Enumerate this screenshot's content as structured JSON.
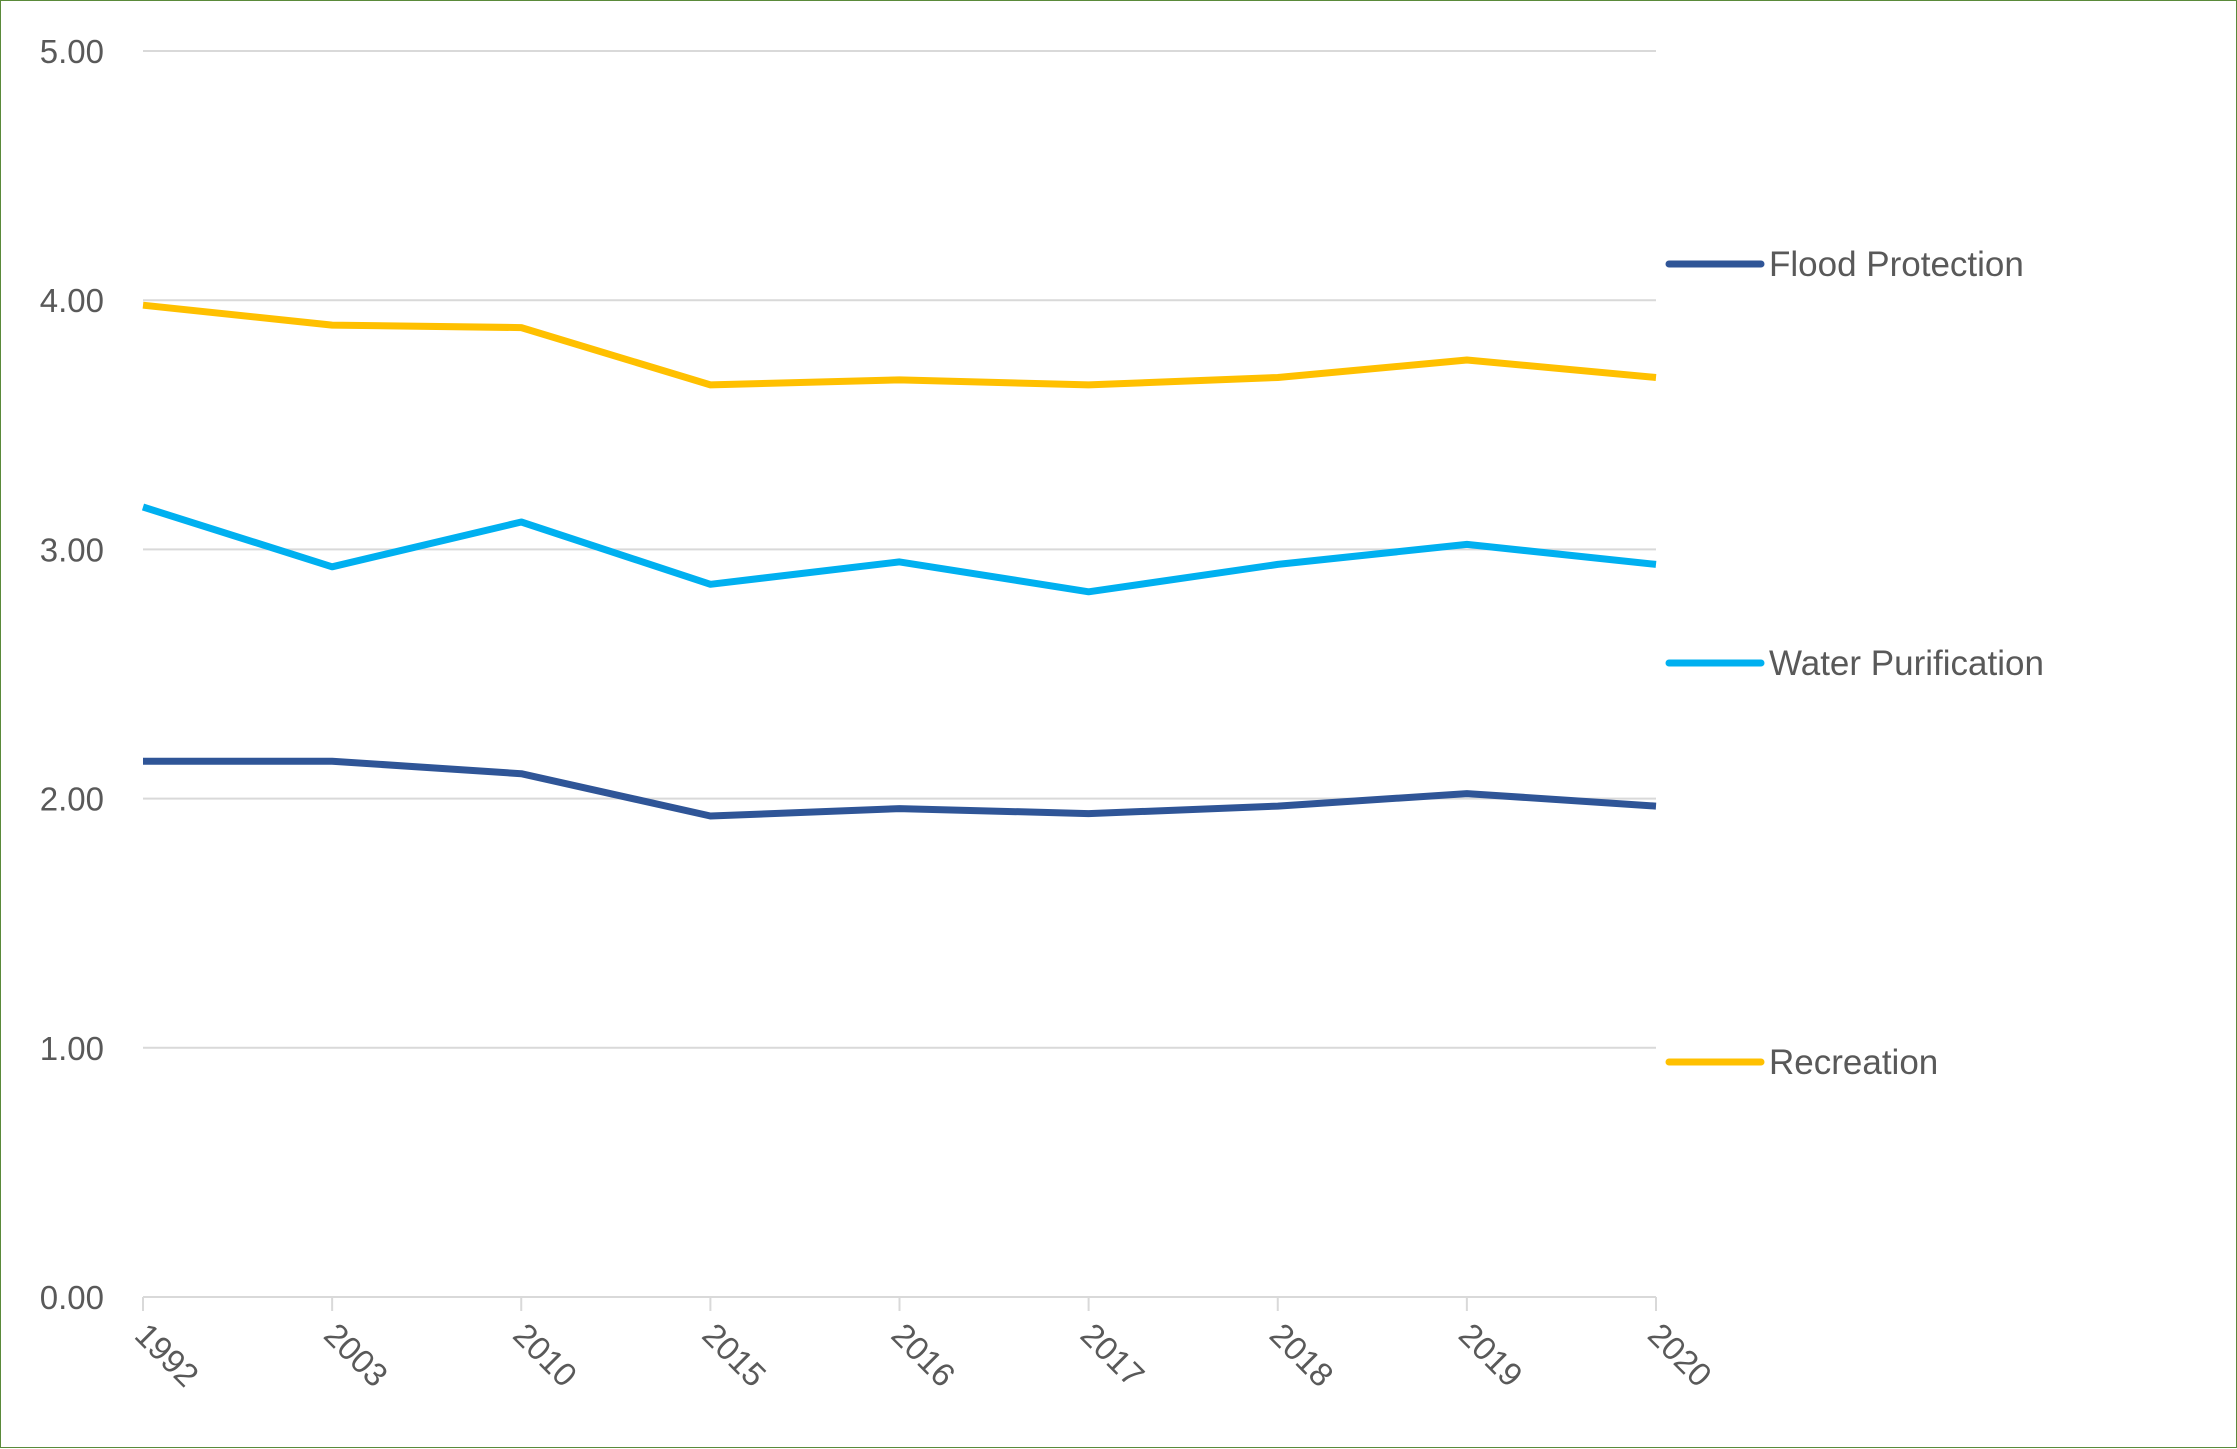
{
  "chart_data": {
    "type": "line",
    "categories": [
      "1992",
      "2003",
      "2010",
      "2015",
      "2016",
      "2017",
      "2018",
      "2019",
      "2020"
    ],
    "series": [
      {
        "name": "Flood Protection",
        "color": "#2f5597",
        "values": [
          2.15,
          2.15,
          2.1,
          1.93,
          1.96,
          1.94,
          1.97,
          2.02,
          1.97
        ]
      },
      {
        "name": "Water Purification",
        "color": "#00b0f0",
        "values": [
          3.17,
          2.93,
          3.11,
          2.86,
          2.95,
          2.83,
          2.94,
          3.02,
          2.94
        ]
      },
      {
        "name": "Recreation",
        "color": "#ffc000",
        "values": [
          3.98,
          3.9,
          3.89,
          3.66,
          3.68,
          3.66,
          3.69,
          3.76,
          3.69
        ]
      }
    ],
    "ylim": [
      0,
      5
    ],
    "yticks": [
      "0.00",
      "1.00",
      "2.00",
      "3.00",
      "4.00",
      "5.00"
    ],
    "grid": true,
    "legend_position": "right",
    "title": "",
    "xlabel": "",
    "ylabel": ""
  }
}
